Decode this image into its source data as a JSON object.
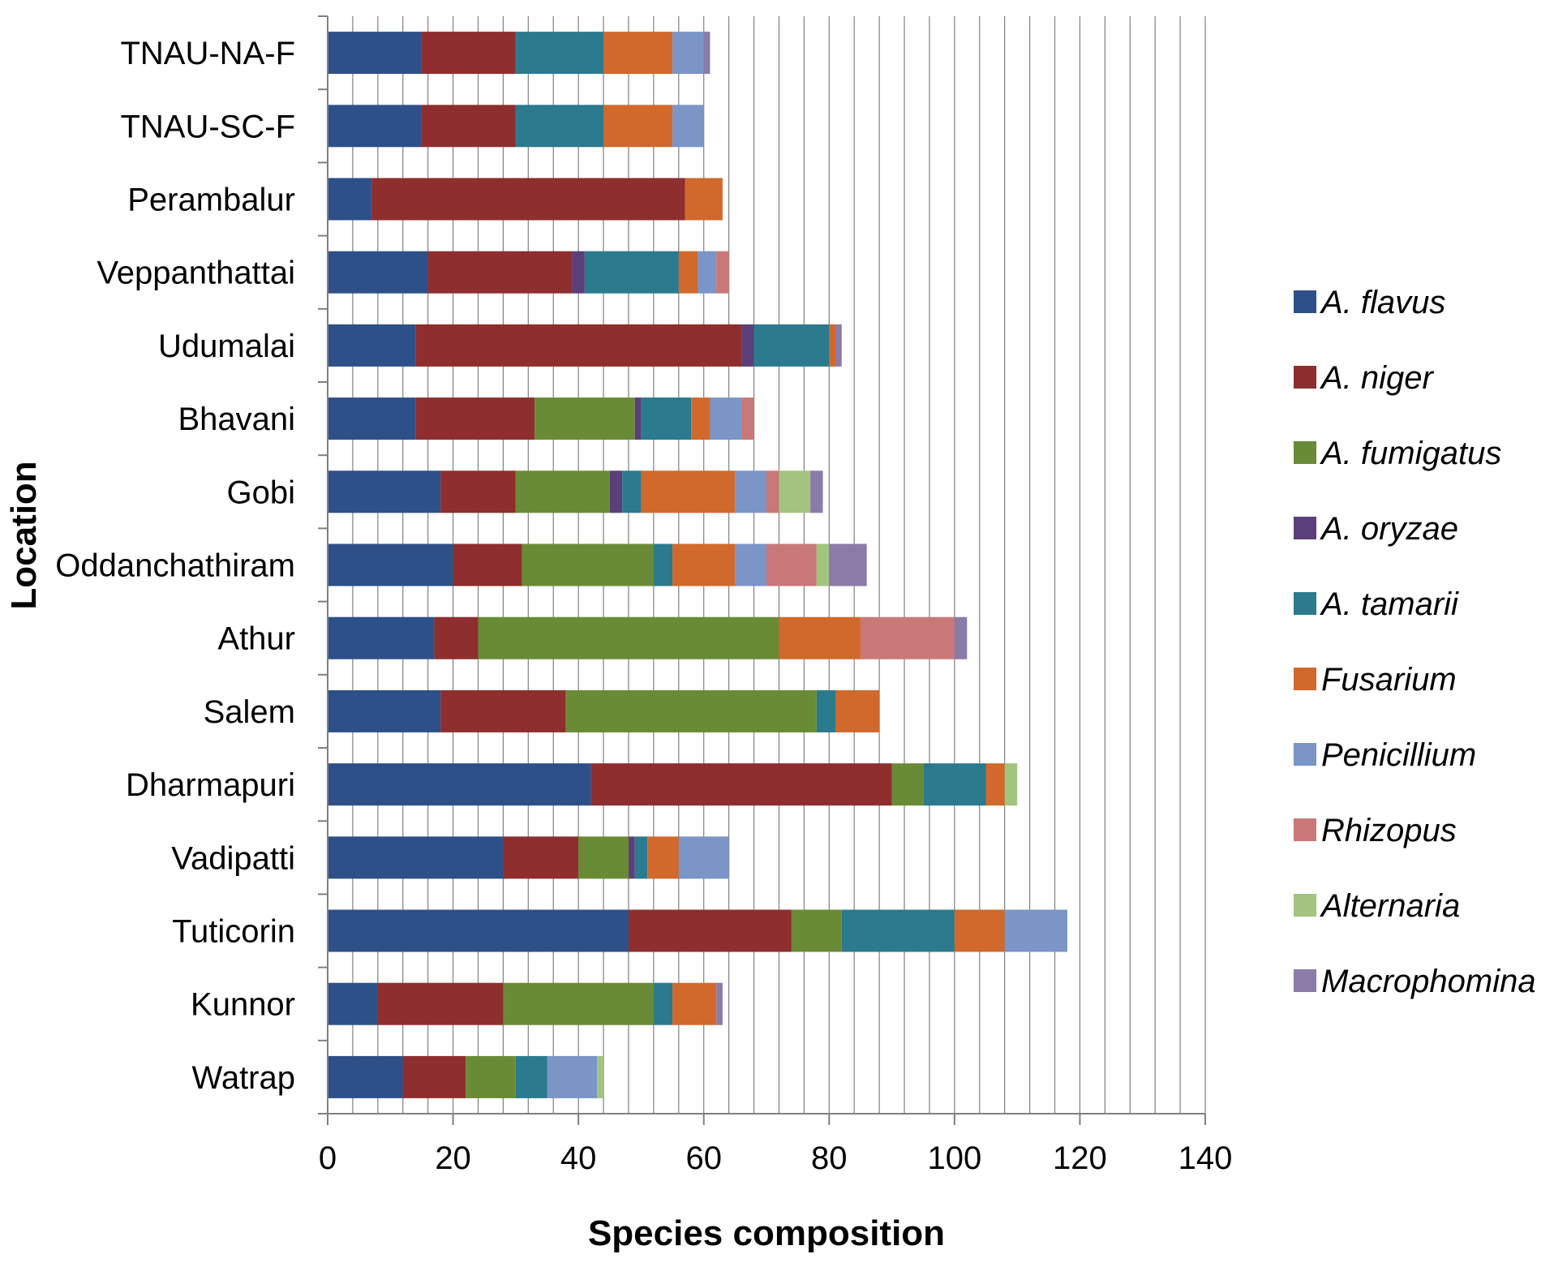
{
  "chart_data": {
    "type": "bar",
    "orientation": "horizontal",
    "stacked": true,
    "xlabel": "Species composition",
    "ylabel": "Location",
    "xlim": [
      0,
      140
    ],
    "x_ticks": [
      0,
      20,
      40,
      60,
      80,
      100,
      120,
      140
    ],
    "grid": "vertical gridlines every 4 units",
    "legend_position": "right",
    "categories": [
      "TNAU-NA-F",
      "TNAU-SC-F",
      "Perambalur",
      "Veppanthattai",
      "Udumalai",
      "Bhavani",
      "Gobi",
      "Oddanchathiram",
      "Athur",
      "Salem",
      "Dharmapuri",
      "Vadipatti",
      "Tuticorin",
      "Kunnor",
      "Watrap"
    ],
    "series": [
      {
        "name": "A. flavus",
        "color": "#2E5089",
        "values": [
          15,
          15,
          7,
          16,
          14,
          14,
          18,
          20,
          17,
          18,
          42,
          28,
          48,
          8,
          12
        ]
      },
      {
        "name": "A. niger",
        "color": "#8E2E2E",
        "values": [
          15,
          15,
          50,
          23,
          52,
          19,
          12,
          11,
          7,
          20,
          48,
          12,
          26,
          20,
          10
        ]
      },
      {
        "name": "A. fumigatus",
        "color": "#6A8B36",
        "values": [
          0,
          0,
          0,
          0,
          0,
          16,
          15,
          21,
          48,
          40,
          5,
          8,
          8,
          24,
          8
        ]
      },
      {
        "name": "A. oryzae",
        "color": "#5A3F7A",
        "values": [
          0,
          0,
          0,
          2,
          2,
          1,
          2,
          0,
          0,
          0,
          0,
          1,
          0,
          0,
          0
        ]
      },
      {
        "name": "A. tamarii",
        "color": "#2B7A8E",
        "values": [
          14,
          14,
          0,
          15,
          12,
          8,
          3,
          3,
          0,
          3,
          10,
          2,
          18,
          3,
          5
        ]
      },
      {
        "name": "Fusarium",
        "color": "#D0692B",
        "values": [
          11,
          11,
          6,
          3,
          1,
          3,
          15,
          10,
          13,
          7,
          3,
          5,
          8,
          7,
          0
        ]
      },
      {
        "name": "Penicillium",
        "color": "#7A95C6",
        "values": [
          5,
          5,
          0,
          3,
          0,
          5,
          5,
          5,
          0,
          0,
          0,
          8,
          10,
          0,
          8
        ]
      },
      {
        "name": "Rhizopus",
        "color": "#C97878",
        "values": [
          0,
          0,
          0,
          2,
          0,
          2,
          2,
          8,
          15,
          0,
          0,
          0,
          0,
          0,
          0
        ]
      },
      {
        "name": "Alternaria",
        "color": "#A2C47F",
        "values": [
          0,
          0,
          0,
          0,
          0,
          0,
          5,
          2,
          0,
          0,
          2,
          0,
          0,
          0,
          1
        ]
      },
      {
        "name": "Macrophomina",
        "color": "#8B7BA8",
        "values": [
          1,
          0,
          0,
          0,
          1,
          0,
          2,
          6,
          2,
          0,
          0,
          0,
          0,
          1,
          0
        ]
      }
    ]
  }
}
